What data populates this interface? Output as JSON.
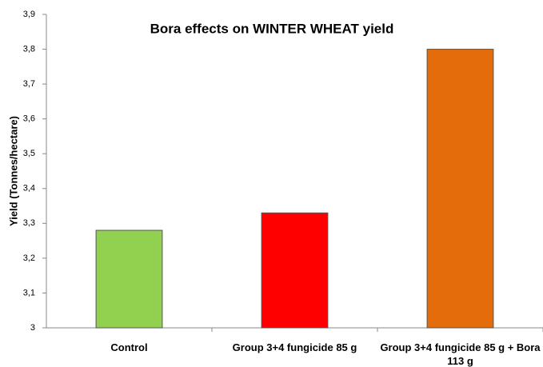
{
  "chart_data": {
    "type": "bar",
    "title": "Bora  effects on WINTER WHEAT yield",
    "y_label": "Yield  (Tonnes/hectare)",
    "categories": [
      "Control",
      "Group 3+4  fungicide  85 g",
      "Group 3+4 fungicide  85 g + Bora 113 g"
    ],
    "values": [
      3.28,
      3.33,
      3.8
    ],
    "colors": [
      "#92d050",
      "#ff0000",
      "#e46c0a"
    ],
    "ylim": [
      3,
      3.9
    ],
    "yticks": [
      3,
      {
        "value": 3.1,
        "label": "3,1"
      },
      {
        "value": 3.2,
        "label": "3,2"
      },
      {
        "value": 3.3,
        "label": "3,3"
      },
      {
        "value": 3.4,
        "label": "3,4"
      },
      {
        "value": 3.5,
        "label": "3,5"
      },
      {
        "value": 3.6,
        "label": "3,6"
      },
      {
        "value": 3.7,
        "label": "3,7"
      },
      {
        "value": 3.8,
        "label": "3,8"
      },
      {
        "value": 3.9,
        "label": "3,9"
      }
    ],
    "grid": false
  }
}
